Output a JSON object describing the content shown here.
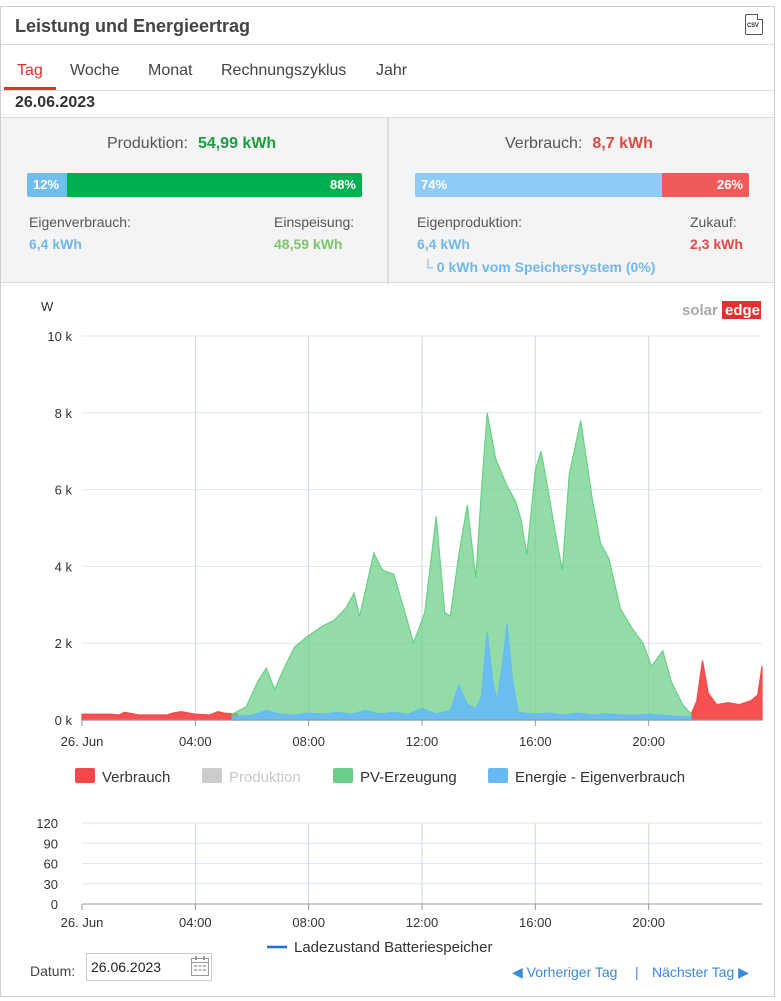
{
  "header": {
    "title": "Leistung und Energieertrag",
    "csv_label": "CSV"
  },
  "tabs": [
    {
      "label": "Tag",
      "active": true
    },
    {
      "label": "Woche",
      "active": false
    },
    {
      "label": "Monat",
      "active": false
    },
    {
      "label": "Rechnungszyklus",
      "active": false
    },
    {
      "label": "Jahr",
      "active": false
    }
  ],
  "selected_date": "26.06.2023",
  "production": {
    "label": "Produktion:",
    "value": "54,99 kWh",
    "bar": {
      "left_pct": "12%",
      "right_pct": "88%",
      "left_fraction": 0.12,
      "left_color": "#6fbfee",
      "right_color": "#00b050"
    },
    "self_consumption_label": "Eigenverbrauch:",
    "self_consumption_value": "6,4 kWh",
    "feed_in_label": "Einspeisung:",
    "feed_in_value": "48,59 kWh"
  },
  "consumption": {
    "label": "Verbrauch:",
    "value": "8,7 kWh",
    "bar": {
      "left_pct": "74%",
      "right_pct": "26%",
      "left_fraction": 0.74,
      "left_color": "#8ecbf7",
      "right_color": "#ef5b5b"
    },
    "self_production_label": "Eigenproduktion:",
    "self_production_value": "6,4 kWh",
    "storage_note": "└ 0 kWh vom Speichersystem (0%)",
    "purchase_label": "Zukauf:",
    "purchase_value": "2,3 kWh"
  },
  "brand": {
    "solar": "solar",
    "edge": "edge"
  },
  "chart_data": [
    {
      "type": "area",
      "ylabel": "W",
      "y_unit_hint": "W",
      "ylim": [
        0,
        10000
      ],
      "y_ticks": [
        "0 k",
        "2 k",
        "4 k",
        "6 k",
        "8 k",
        "10 k"
      ],
      "x_ticks": [
        "26. Jun",
        "04:00",
        "08:00",
        "12:00",
        "16:00",
        "20:00"
      ],
      "xlim_hours": [
        0,
        24
      ],
      "grid": true,
      "legend_position": "bottom",
      "series": [
        {
          "name": "Verbrauch",
          "color": "#f44848",
          "x": [
            0,
            1,
            1.3,
            1.5,
            2,
            2.5,
            3,
            3.2,
            3.5,
            4,
            4.5,
            4.8,
            5,
            5.5,
            21.5,
            21.7,
            21.9,
            22.1,
            22.4,
            22.8,
            23.2,
            23.6,
            23.85,
            24
          ],
          "y": [
            150,
            150,
            130,
            200,
            130,
            130,
            130,
            180,
            220,
            150,
            130,
            220,
            180,
            150,
            150,
            500,
            1550,
            700,
            400,
            450,
            400,
            500,
            650,
            1400
          ]
        },
        {
          "name": "Produktion",
          "color": "#cccccc",
          "x": [],
          "y": []
        },
        {
          "name": "PV-Erzeugung",
          "color": "#69cf87",
          "x": [
            5.3,
            5.8,
            6.2,
            6.5,
            6.8,
            7.1,
            7.5,
            8,
            8.5,
            8.9,
            9.3,
            9.6,
            9.8,
            10.3,
            10.6,
            11,
            11.4,
            11.7,
            12.1,
            12.5,
            12.8,
            13,
            13.3,
            13.6,
            13.9,
            14.1,
            14.3,
            14.6,
            15,
            15.3,
            15.5,
            15.7,
            16,
            16.2,
            16.4,
            16.7,
            16.95,
            17.2,
            17.6,
            18,
            18.3,
            18.6,
            19,
            19.4,
            19.8,
            20.1,
            20.5,
            20.8,
            21.2,
            21.5
          ],
          "y": [
            150,
            350,
            1000,
            1350,
            800,
            1300,
            1900,
            2200,
            2450,
            2600,
            2900,
            3300,
            2700,
            4350,
            3900,
            3800,
            2800,
            2000,
            2800,
            5300,
            2800,
            2700,
            4300,
            5600,
            3700,
            6000,
            8000,
            6800,
            6100,
            5700,
            5200,
            4300,
            6500,
            7000,
            6200,
            4900,
            3900,
            6400,
            7800,
            5800,
            4600,
            4200,
            2900,
            2400,
            2000,
            1400,
            1800,
            1000,
            400,
            150
          ]
        },
        {
          "name": "Energie - Eigenverbrauch",
          "color": "#66b9f5",
          "x": [
            5.3,
            6,
            6.5,
            7,
            7.5,
            8,
            8.5,
            9,
            9.5,
            10,
            10.5,
            11,
            11.5,
            12,
            12.5,
            13,
            13.3,
            13.6,
            13.9,
            14.1,
            14.3,
            14.5,
            14.65,
            14.85,
            15,
            15.2,
            15.4,
            16,
            16.5,
            17,
            17.5,
            18,
            18.5,
            19,
            19.5,
            20,
            20.5,
            21,
            21.5
          ],
          "y": [
            80,
            120,
            250,
            150,
            120,
            180,
            150,
            200,
            150,
            250,
            160,
            200,
            150,
            300,
            160,
            250,
            900,
            400,
            300,
            600,
            2300,
            1000,
            500,
            1500,
            2500,
            1000,
            200,
            150,
            180,
            120,
            180,
            130,
            160,
            130,
            120,
            150,
            120,
            100,
            80
          ]
        }
      ]
    },
    {
      "type": "line",
      "ylim": [
        0,
        120
      ],
      "y_ticks": [
        "0",
        "30",
        "60",
        "90",
        "120"
      ],
      "x_ticks": [
        "26. Jun",
        "04:00",
        "08:00",
        "12:00",
        "16:00",
        "20:00"
      ],
      "grid": true,
      "legend_position": "bottom",
      "series": [
        {
          "name": "Ladezustand Batteriespeicher",
          "color": "#1a6fe0",
          "x": [],
          "y": []
        }
      ]
    }
  ],
  "footer": {
    "date_label": "Datum:",
    "date_value": "26.06.2023",
    "prev_day": "Vorheriger Tag",
    "separator": "|",
    "next_day": "Nächster Tag"
  }
}
